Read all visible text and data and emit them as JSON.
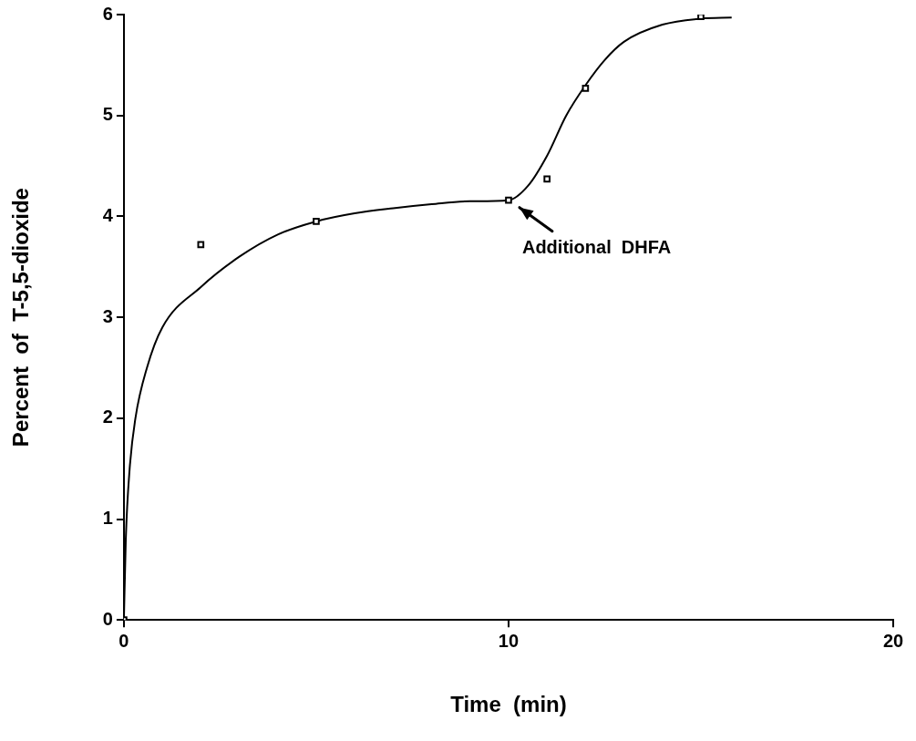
{
  "chart_data": {
    "type": "scatter",
    "xlabel": "Time  (min)",
    "ylabel": "Percent  of  T-5,5-dioxide",
    "xlim": [
      0,
      20
    ],
    "ylim": [
      0,
      6
    ],
    "xticks": [
      0,
      10,
      20
    ],
    "yticks": [
      0,
      1,
      2,
      3,
      4,
      5,
      6
    ],
    "series": [
      {
        "type": "scatter",
        "marker": "square",
        "color": "#000000",
        "x": [
          0,
          2,
          5,
          10,
          11,
          12,
          15
        ],
        "values": [
          0,
          3.72,
          3.95,
          4.16,
          4.37,
          5.27,
          5.98
        ]
      },
      {
        "type": "line",
        "marker": "none",
        "color": "#000000",
        "x": [
          0,
          0.05,
          0.15,
          0.3,
          0.6,
          1,
          2,
          3,
          4,
          5,
          6,
          7,
          8,
          9,
          10,
          10.5,
          11,
          11.5,
          12,
          12.5,
          13,
          14,
          15,
          15.8
        ],
        "values": [
          0,
          0.8,
          1.5,
          2.0,
          2.5,
          2.9,
          3.3,
          3.6,
          3.82,
          3.95,
          4.03,
          4.08,
          4.12,
          4.15,
          4.16,
          4.3,
          4.6,
          5.0,
          5.3,
          5.55,
          5.73,
          5.9,
          5.96,
          5.97
        ]
      }
    ],
    "annotations": [
      {
        "text": "Additional  DHFA",
        "x": 10,
        "y": 4.16
      }
    ]
  }
}
